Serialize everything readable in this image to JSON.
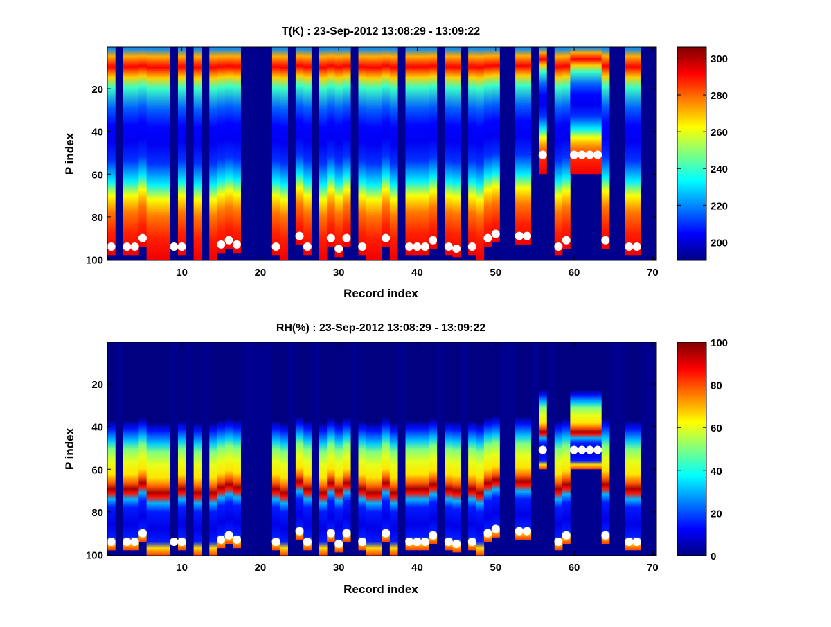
{
  "chart_data": [
    {
      "type": "heatmap",
      "title": "T(K) : 23-Sep-2012 13:08:29 - 13:09:22",
      "xlabel": "Record index",
      "ylabel": "P index",
      "xlim": [
        0.5,
        70.5
      ],
      "ylim": [
        100.5,
        0.5
      ],
      "y_reversed": true,
      "xticks": [
        10,
        20,
        30,
        40,
        50,
        60,
        70
      ],
      "yticks": [
        20,
        40,
        60,
        80,
        100
      ],
      "colormap": "jet",
      "clim": [
        190,
        306
      ],
      "colorbar_ticks": [
        200,
        220,
        240,
        260,
        280,
        300
      ],
      "profile": [
        [
          1,
          220
        ],
        [
          5,
          272
        ],
        [
          10,
          292
        ],
        [
          15,
          268
        ],
        [
          20,
          240
        ],
        [
          30,
          215
        ],
        [
          38,
          205
        ],
        [
          46,
          203
        ],
        [
          55,
          210
        ],
        [
          65,
          232
        ],
        [
          72,
          262
        ],
        [
          80,
          278
        ],
        [
          90,
          288
        ],
        [
          100,
          293
        ]
      ],
      "records_with_data": [
        1,
        3,
        4,
        5,
        6,
        7,
        8,
        10,
        12,
        14,
        15,
        16,
        17,
        22,
        23,
        25,
        26,
        28,
        29,
        30,
        31,
        33,
        34,
        35,
        36,
        37,
        39,
        40,
        41,
        42,
        44,
        45,
        47,
        48,
        49,
        50,
        53,
        54,
        56,
        58,
        59,
        60,
        61,
        62,
        63,
        64,
        67,
        68
      ],
      "surface_markers": [
        {
          "x": 1,
          "y": 94
        },
        {
          "x": 3,
          "y": 94
        },
        {
          "x": 4,
          "y": 94
        },
        {
          "x": 5,
          "y": 90
        },
        {
          "x": 9,
          "y": 94
        },
        {
          "x": 10,
          "y": 94
        },
        {
          "x": 15,
          "y": 93
        },
        {
          "x": 16,
          "y": 91
        },
        {
          "x": 17,
          "y": 93
        },
        {
          "x": 22,
          "y": 94
        },
        {
          "x": 25,
          "y": 89
        },
        {
          "x": 26,
          "y": 94
        },
        {
          "x": 29,
          "y": 90
        },
        {
          "x": 30,
          "y": 95
        },
        {
          "x": 31,
          "y": 90
        },
        {
          "x": 33,
          "y": 94
        },
        {
          "x": 36,
          "y": 90
        },
        {
          "x": 39,
          "y": 94
        },
        {
          "x": 40,
          "y": 94
        },
        {
          "x": 41,
          "y": 94
        },
        {
          "x": 42,
          "y": 91
        },
        {
          "x": 44,
          "y": 94
        },
        {
          "x": 45,
          "y": 95
        },
        {
          "x": 47,
          "y": 94
        },
        {
          "x": 49,
          "y": 90
        },
        {
          "x": 50,
          "y": 88
        },
        {
          "x": 53,
          "y": 89
        },
        {
          "x": 54,
          "y": 89
        },
        {
          "x": 56,
          "y": 51
        },
        {
          "x": 58,
          "y": 94
        },
        {
          "x": 59,
          "y": 91
        },
        {
          "x": 60,
          "y": 51
        },
        {
          "x": 61,
          "y": 51
        },
        {
          "x": 62,
          "y": 51
        },
        {
          "x": 63,
          "y": 51
        },
        {
          "x": 64,
          "y": 91
        },
        {
          "x": 67,
          "y": 94
        },
        {
          "x": 68,
          "y": 94
        }
      ]
    },
    {
      "type": "heatmap",
      "title": "RH(%) : 23-Sep-2012 13:08:29 - 13:09:22",
      "xlabel": "Record index",
      "ylabel": "P index",
      "xlim": [
        0.5,
        70.5
      ],
      "ylim": [
        100.5,
        0.5
      ],
      "y_reversed": true,
      "xticks": [
        10,
        20,
        30,
        40,
        50,
        60,
        70
      ],
      "yticks": [
        20,
        40,
        60,
        80,
        100
      ],
      "colormap": "jet",
      "clim": [
        0,
        100
      ],
      "colorbar_ticks": [
        0,
        20,
        40,
        60,
        80,
        100
      ],
      "profile": [
        [
          1,
          0
        ],
        [
          38,
          0
        ],
        [
          42,
          14
        ],
        [
          48,
          32
        ],
        [
          52,
          50
        ],
        [
          58,
          60
        ],
        [
          64,
          65
        ],
        [
          68,
          78
        ],
        [
          71,
          96
        ],
        [
          73,
          86
        ],
        [
          76,
          30
        ],
        [
          80,
          15
        ],
        [
          88,
          10
        ],
        [
          94,
          15
        ],
        [
          97,
          66
        ],
        [
          100,
          80
        ]
      ],
      "records_with_data": [
        1,
        3,
        4,
        5,
        6,
        7,
        8,
        10,
        12,
        14,
        15,
        16,
        17,
        22,
        23,
        25,
        26,
        28,
        29,
        30,
        31,
        33,
        34,
        35,
        36,
        37,
        39,
        40,
        41,
        42,
        44,
        45,
        47,
        48,
        49,
        50,
        53,
        54,
        56,
        58,
        59,
        60,
        61,
        62,
        63,
        64,
        67,
        68
      ],
      "surface_markers": [
        {
          "x": 1,
          "y": 94
        },
        {
          "x": 3,
          "y": 94
        },
        {
          "x": 4,
          "y": 94
        },
        {
          "x": 5,
          "y": 90
        },
        {
          "x": 9,
          "y": 94
        },
        {
          "x": 10,
          "y": 94
        },
        {
          "x": 15,
          "y": 93
        },
        {
          "x": 16,
          "y": 91
        },
        {
          "x": 17,
          "y": 93
        },
        {
          "x": 22,
          "y": 94
        },
        {
          "x": 25,
          "y": 89
        },
        {
          "x": 26,
          "y": 94
        },
        {
          "x": 29,
          "y": 90
        },
        {
          "x": 30,
          "y": 95
        },
        {
          "x": 31,
          "y": 90
        },
        {
          "x": 33,
          "y": 94
        },
        {
          "x": 36,
          "y": 90
        },
        {
          "x": 39,
          "y": 94
        },
        {
          "x": 40,
          "y": 94
        },
        {
          "x": 41,
          "y": 94
        },
        {
          "x": 42,
          "y": 91
        },
        {
          "x": 44,
          "y": 94
        },
        {
          "x": 45,
          "y": 95
        },
        {
          "x": 47,
          "y": 94
        },
        {
          "x": 49,
          "y": 90
        },
        {
          "x": 50,
          "y": 88
        },
        {
          "x": 53,
          "y": 89
        },
        {
          "x": 54,
          "y": 89
        },
        {
          "x": 56,
          "y": 51
        },
        {
          "x": 58,
          "y": 94
        },
        {
          "x": 59,
          "y": 91
        },
        {
          "x": 60,
          "y": 51
        },
        {
          "x": 61,
          "y": 51
        },
        {
          "x": 62,
          "y": 51
        },
        {
          "x": 63,
          "y": 51
        },
        {
          "x": 64,
          "y": 91
        },
        {
          "x": 67,
          "y": 94
        },
        {
          "x": 68,
          "y": 94
        }
      ]
    }
  ]
}
